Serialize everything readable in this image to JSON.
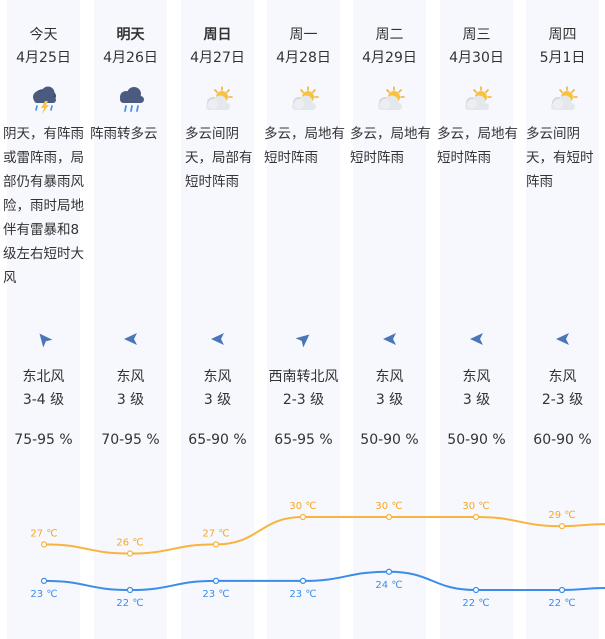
{
  "days": [
    {
      "day": "今天",
      "date": "4月25日",
      "icon": "thunderstorm-rain-icon",
      "desc": "阴天，有阵雨或雷阵雨，局部仍有暴雨风险，雨时局地伴有雷暴和8级左右短时大风",
      "wind_icon": "wind-direction-arrow-icon",
      "wind_dir": "东北风",
      "wind_level": "3-4 级",
      "humidity": "75-95 %",
      "high": "27 ℃",
      "low": "23 ℃"
    },
    {
      "day": "明天",
      "date": "4月26日",
      "icon": "rain-cloud-icon",
      "desc": "阵雨转多云",
      "wind_icon": "wind-direction-arrow-icon",
      "wind_dir": "东风",
      "wind_level": "3 级",
      "humidity": "70-95 %",
      "high": "26 ℃",
      "low": "22 ℃"
    },
    {
      "day": "周日",
      "date": "4月27日",
      "icon": "partly-cloudy-icon",
      "desc": "多云间阴天，局部有短时阵雨",
      "wind_icon": "wind-direction-arrow-icon",
      "wind_dir": "东风",
      "wind_level": "3 级",
      "humidity": "65-90 %",
      "high": "27 ℃",
      "low": "23 ℃"
    },
    {
      "day": "周一",
      "date": "4月28日",
      "icon": "partly-cloudy-icon",
      "desc": "多云，局地有短时阵雨",
      "wind_icon": "wind-direction-arrow-icon",
      "wind_dir": "西南转北风",
      "wind_level": "2-3 级",
      "humidity": "65-95 %",
      "high": "30 ℃",
      "low": "23 ℃"
    },
    {
      "day": "周二",
      "date": "4月29日",
      "icon": "partly-cloudy-icon",
      "desc": "多云，局地有短时阵雨",
      "wind_icon": "wind-direction-arrow-icon",
      "wind_dir": "东风",
      "wind_level": "3 级",
      "humidity": "50-90 %",
      "high": "30 ℃",
      "low": "24 ℃"
    },
    {
      "day": "周三",
      "date": "4月30日",
      "icon": "partly-cloudy-icon",
      "desc": "多云，局地有短时阵雨",
      "wind_icon": "wind-direction-arrow-icon",
      "wind_dir": "东风",
      "wind_level": "3 级",
      "humidity": "50-90 %",
      "high": "30 ℃",
      "low": "22 ℃"
    },
    {
      "day": "周四",
      "date": "5月1日",
      "icon": "partly-cloudy-icon",
      "desc": "多云间阴天，有短时阵雨",
      "wind_icon": "wind-direction-arrow-icon",
      "wind_dir": "东风",
      "wind_level": "2-3 级",
      "humidity": "60-90 %",
      "high": "29 ℃",
      "low": "22 ℃"
    }
  ],
  "colors": {
    "high_line": "#f8b43c",
    "low_line": "#3b8de8",
    "high_text": "#f5a623",
    "low_text": "#3b8de8",
    "column_bg": "#f6f8fd"
  },
  "chart_data": {
    "type": "line",
    "categories": [
      "4月25日",
      "4月26日",
      "4月27日",
      "4月28日",
      "4月29日",
      "4月30日",
      "5月1日"
    ],
    "series": [
      {
        "values": [
          27,
          26,
          27,
          30,
          30,
          30,
          29
        ]
      },
      {
        "values": [
          23,
          22,
          23,
          23,
          24,
          22,
          22
        ]
      }
    ],
    "unit": "℃"
  }
}
